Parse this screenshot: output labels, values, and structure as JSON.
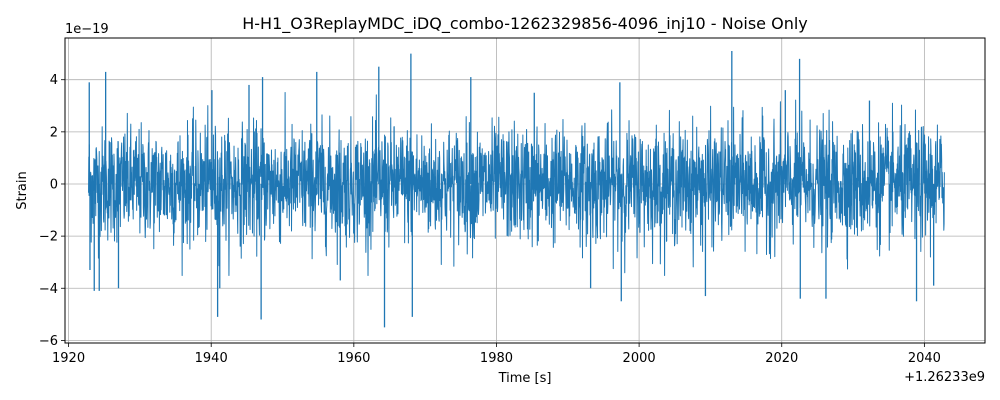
{
  "chart_data": {
    "type": "line",
    "title": "H-H1_O3ReplayMDC_iDQ_combo-1262329856-4096_inj10 - Noise Only",
    "xlabel": "Time [s]",
    "ylabel": "Strain",
    "x_offset_label": "+1.26233e9",
    "y_scale_label": "1e−19",
    "xlim": [
      1919.5,
      2048.5
    ],
    "ylim": [
      -6.1,
      5.6
    ],
    "x_ticks": [
      1920,
      1940,
      1960,
      1980,
      2000,
      2020,
      2040
    ],
    "x_tick_labels": [
      "1920",
      "1940",
      "1960",
      "1980",
      "2000",
      "2020",
      "2040"
    ],
    "y_ticks": [
      -6,
      -4,
      -2,
      0,
      2,
      4
    ],
    "y_tick_labels": [
      "−6",
      "−4",
      "−2",
      "0",
      "2",
      "4"
    ],
    "grid": true,
    "series": [
      {
        "color": "#1f77b4",
        "x_range": [
          1922.8,
          2042.8
        ],
        "typical_envelope": [
          -2.6,
          2.6
        ],
        "peaks": [
          {
            "x": 1922.9,
            "y": 3.9
          },
          {
            "x": 1923.0,
            "y": -3.3
          },
          {
            "x": 1923.6,
            "y": -4.1
          },
          {
            "x": 1924.3,
            "y": -4.1
          },
          {
            "x": 1925.2,
            "y": 4.3
          },
          {
            "x": 1927.0,
            "y": -4.0
          },
          {
            "x": 1940.1,
            "y": 3.6
          },
          {
            "x": 1941.2,
            "y": -4.0
          },
          {
            "x": 1940.9,
            "y": -5.1
          },
          {
            "x": 1945.3,
            "y": 3.8
          },
          {
            "x": 1947.2,
            "y": 4.1
          },
          {
            "x": 1947.0,
            "y": -5.2
          },
          {
            "x": 1954.8,
            "y": 4.3
          },
          {
            "x": 1958.1,
            "y": -3.7
          },
          {
            "x": 1963.5,
            "y": 4.5
          },
          {
            "x": 1964.3,
            "y": -5.5
          },
          {
            "x": 1968.0,
            "y": 5.0
          },
          {
            "x": 1968.2,
            "y": -5.1
          },
          {
            "x": 1976.4,
            "y": 4.1
          },
          {
            "x": 1985.3,
            "y": 3.5
          },
          {
            "x": 1993.2,
            "y": -4.0
          },
          {
            "x": 1997.3,
            "y": 3.9
          },
          {
            "x": 1997.5,
            "y": -4.5
          },
          {
            "x": 2009.3,
            "y": -4.3
          },
          {
            "x": 2013.0,
            "y": 5.1
          },
          {
            "x": 2020.5,
            "y": 3.6
          },
          {
            "x": 2022.5,
            "y": 4.8
          },
          {
            "x": 2022.6,
            "y": -4.4
          },
          {
            "x": 2026.2,
            "y": -4.4
          },
          {
            "x": 2032.3,
            "y": 3.2
          },
          {
            "x": 2038.9,
            "y": -4.5
          },
          {
            "x": 2041.3,
            "y": -3.9
          }
        ]
      }
    ]
  }
}
